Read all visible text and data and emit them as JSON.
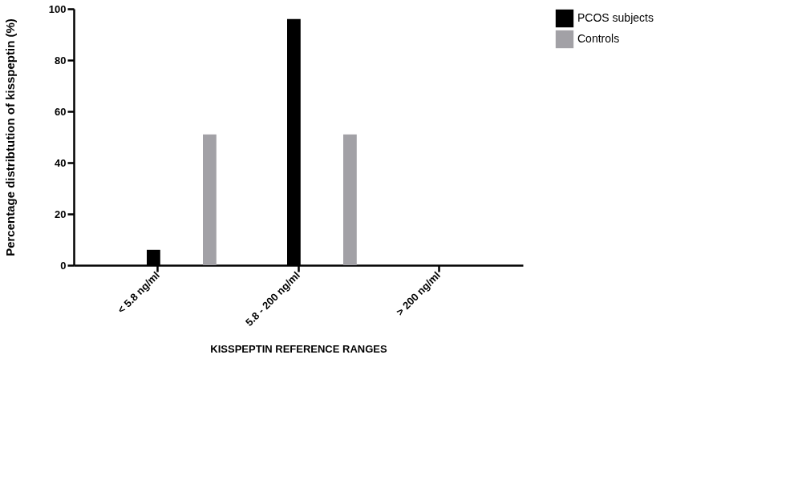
{
  "chart_data": {
    "type": "bar",
    "xlabel": "KISSPEPTIN REFERENCE RANGES",
    "ylabel": "Percentage distribtution of kisspeptin (%)",
    "categories": [
      "< 5.8 ng/ml",
      "5.8 - 200 ng/ml",
      "> 200 ng/ml"
    ],
    "series": [
      {
        "name": "PCOS subjects",
        "color": "#000000",
        "values": [
          6,
          96,
          0
        ]
      },
      {
        "name": "Controls",
        "color": "#a2a1a6",
        "values": [
          51,
          51,
          0
        ]
      }
    ],
    "ylim": [
      0,
      100
    ],
    "yticks": [
      0,
      20,
      40,
      60,
      80,
      100
    ],
    "grid": false,
    "legend": "top right"
  }
}
